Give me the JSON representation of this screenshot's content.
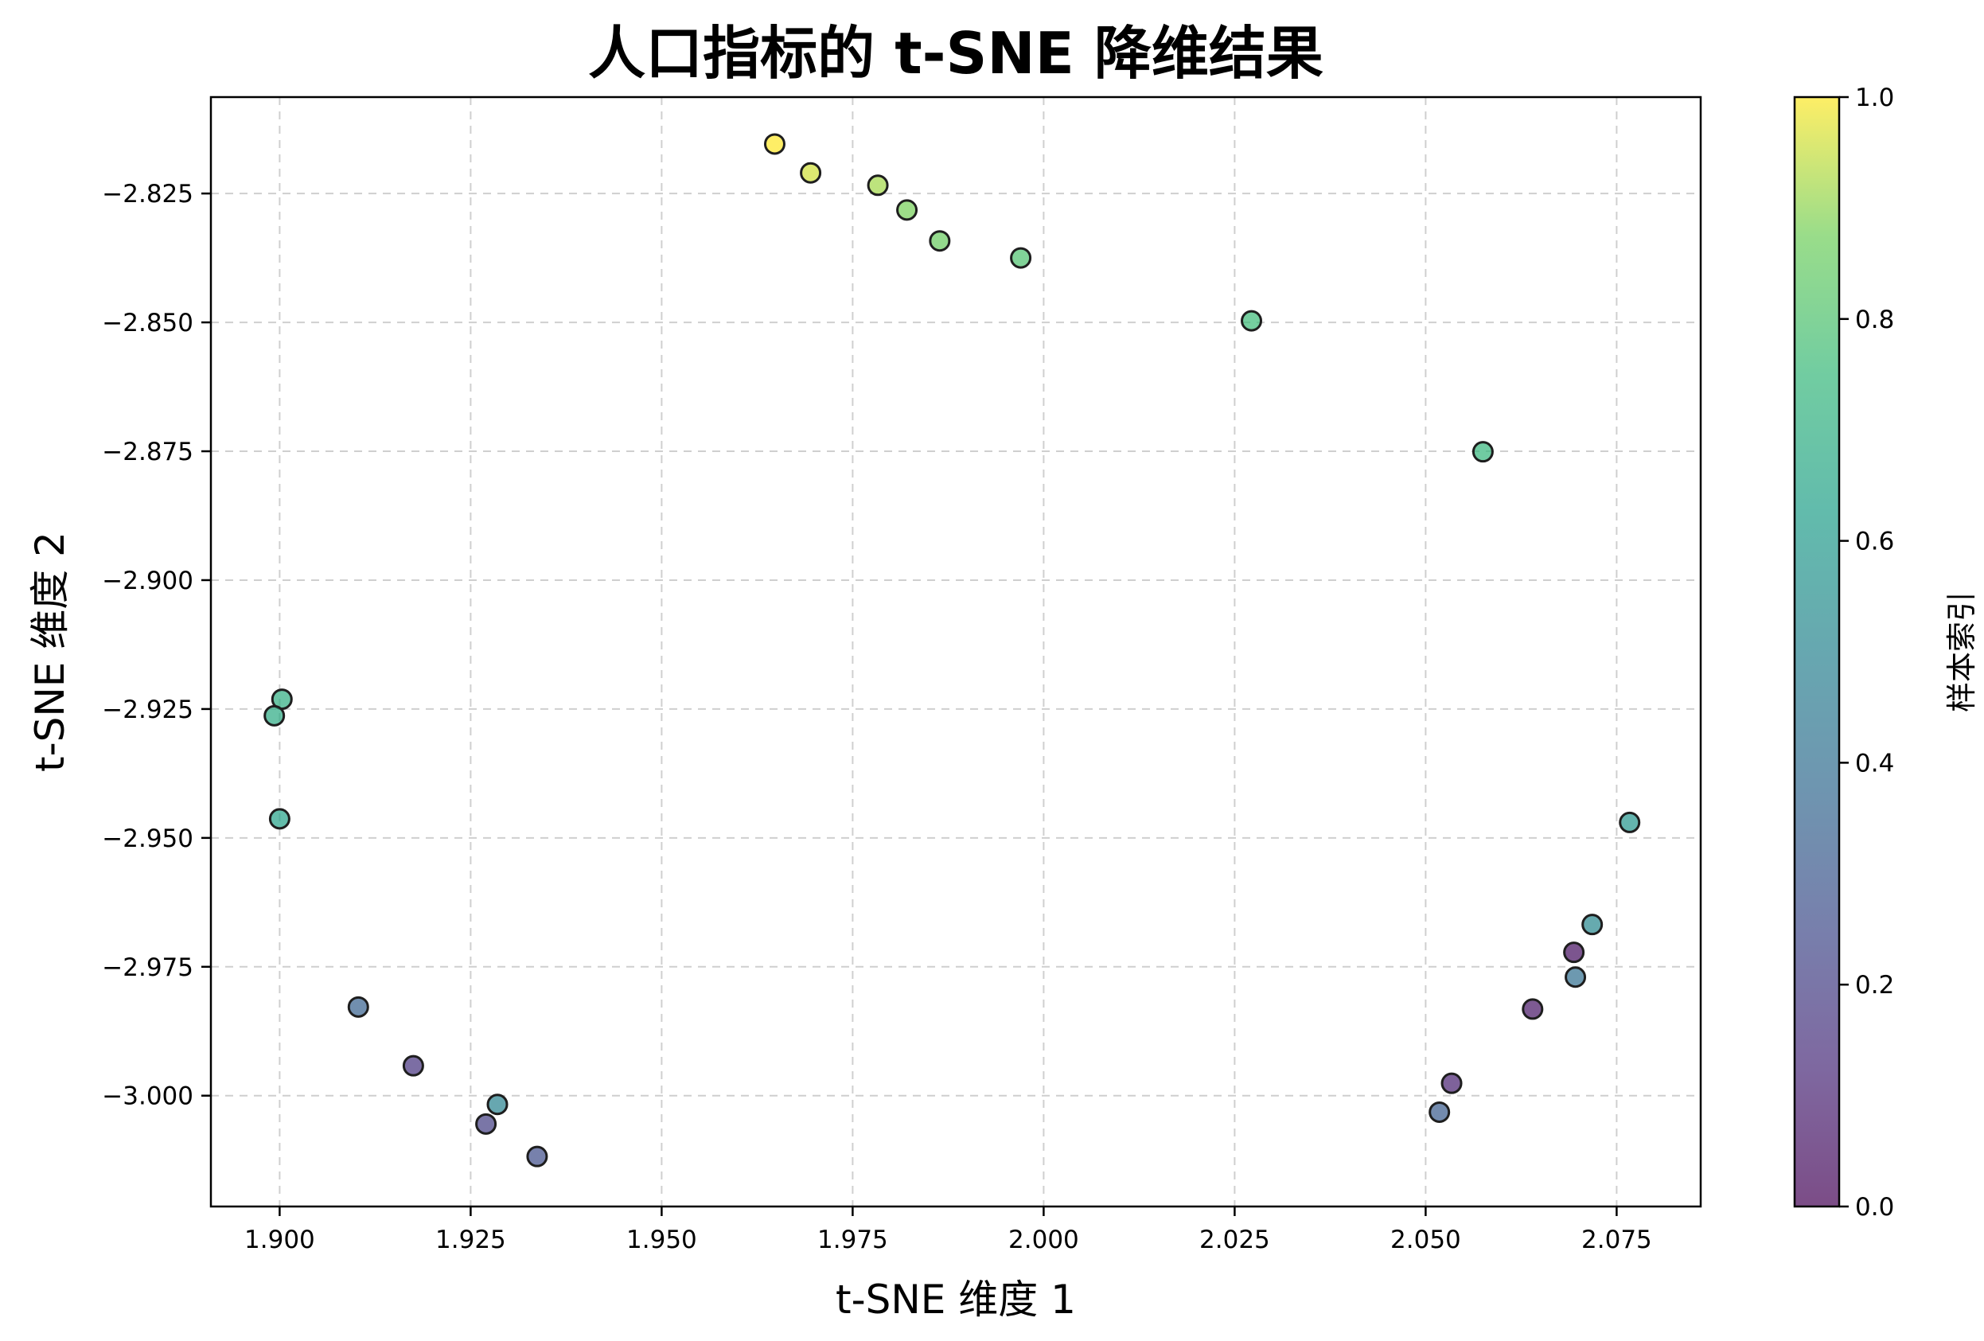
{
  "chart_data": {
    "type": "scatter",
    "title": "人口指标的 t-SNE 降维结果",
    "xlabel": "t-SNE 维度 1",
    "ylabel": "t-SNE 维度 2",
    "xlim": [
      1.891,
      2.086
    ],
    "ylim": [
      -3.0215,
      -2.8063
    ],
    "xticks": [
      1.9,
      1.925,
      1.95,
      1.975,
      2.0,
      2.025,
      2.05,
      2.075
    ],
    "xtick_labels": [
      "1.900",
      "1.925",
      "1.950",
      "1.975",
      "2.000",
      "2.025",
      "2.050",
      "2.075"
    ],
    "yticks": [
      -2.825,
      -2.85,
      -2.875,
      -2.9,
      -2.925,
      -2.95,
      -2.975,
      -3.0
    ],
    "ytick_labels": [
      "−2.825",
      "−2.850",
      "−2.875",
      "−2.900",
      "−2.925",
      "−2.950",
      "−2.975",
      "−3.000"
    ],
    "grid": true,
    "colormap": "viridis",
    "point_alpha": 0.7,
    "colorbar": {
      "label": "样本索引",
      "range": [
        0.0,
        1.0
      ],
      "ticks": [
        0.0,
        0.2,
        0.4,
        0.6,
        0.8,
        1.0
      ],
      "tick_labels": [
        "0.0",
        "0.2",
        "0.4",
        "0.6",
        "0.8",
        "1.0"
      ]
    },
    "points": [
      {
        "x": 1.9648,
        "y": -2.8154,
        "c": 1.0
      },
      {
        "x": 1.9695,
        "y": -2.821,
        "c": 0.96
      },
      {
        "x": 1.9783,
        "y": -2.8234,
        "c": 0.92
      },
      {
        "x": 1.9821,
        "y": -2.8282,
        "c": 0.88
      },
      {
        "x": 1.9864,
        "y": -2.8342,
        "c": 0.86
      },
      {
        "x": 1.997,
        "y": -2.8375,
        "c": 0.8
      },
      {
        "x": 2.0272,
        "y": -2.8497,
        "c": 0.76
      },
      {
        "x": 2.0575,
        "y": -2.8751,
        "c": 0.74
      },
      {
        "x": 1.9003,
        "y": -2.9231,
        "c": 0.7
      },
      {
        "x": 1.8993,
        "y": -2.9263,
        "c": 0.68
      },
      {
        "x": 1.9,
        "y": -2.9463,
        "c": 0.64
      },
      {
        "x": 2.0767,
        "y": -2.947,
        "c": 0.58
      },
      {
        "x": 2.0718,
        "y": -2.9668,
        "c": 0.52
      },
      {
        "x": 2.0696,
        "y": -2.977,
        "c": 0.4
      },
      {
        "x": 2.0694,
        "y": -2.9722,
        "c": 0.04
      },
      {
        "x": 2.064,
        "y": -2.9832,
        "c": 0.06
      },
      {
        "x": 2.0534,
        "y": -2.9976,
        "c": 0.1
      },
      {
        "x": 2.0518,
        "y": -3.0032,
        "c": 0.32
      },
      {
        "x": 1.9103,
        "y": -2.9828,
        "c": 0.34
      },
      {
        "x": 1.9175,
        "y": -2.9942,
        "c": 0.16
      },
      {
        "x": 1.9285,
        "y": -3.0017,
        "c": 0.5
      },
      {
        "x": 1.927,
        "y": -3.0055,
        "c": 0.2
      },
      {
        "x": 1.9337,
        "y": -3.0118,
        "c": 0.26
      }
    ]
  }
}
